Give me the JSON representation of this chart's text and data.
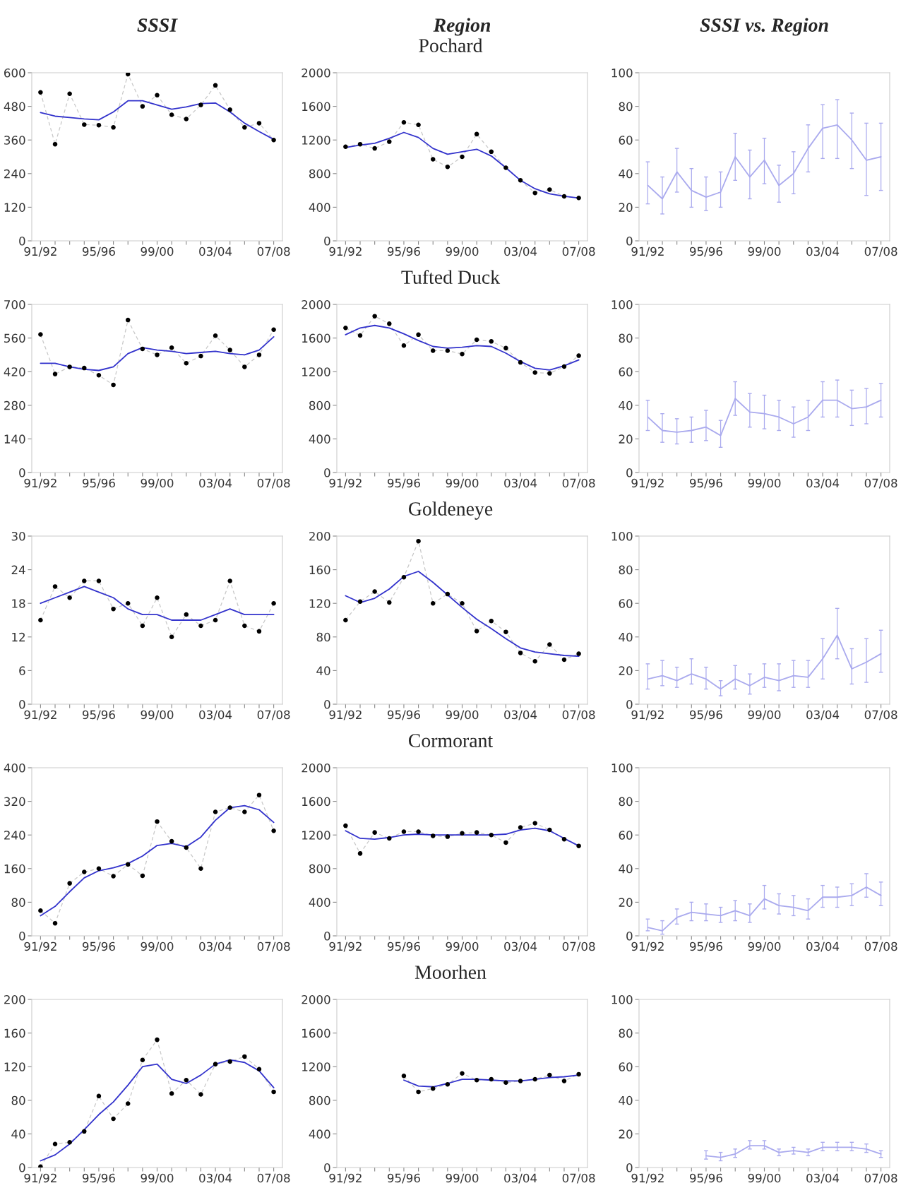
{
  "chart_data": [
    {
      "type": "line",
      "title": "SSSI",
      "categories": [
        "91/92",
        null,
        null,
        null,
        "95/96",
        null,
        null,
        null,
        "99/00",
        null,
        null,
        null,
        "03/04",
        null,
        null,
        null,
        "07/08"
      ],
      "ylim": [
        0,
        600
      ],
      "yticks": [
        0,
        120,
        240,
        360,
        480,
        600
      ],
      "grid": false,
      "series": [
        {
          "line_style": "dashed",
          "color": "#c8c8c8",
          "values": [
            530,
            345,
            525,
            415,
            413,
            405,
            595,
            480,
            520,
            450,
            435,
            485,
            555,
            468,
            405,
            420,
            360
          ]
        },
        {
          "type": "scatter",
          "marker": "circle",
          "color": "#000000",
          "values": [
            530,
            345,
            525,
            415,
            413,
            405,
            595,
            480,
            520,
            450,
            435,
            485,
            555,
            468,
            405,
            420,
            360
          ]
        },
        {
          "color": "#3333cc",
          "values": [
            458,
            445,
            440,
            435,
            432,
            460,
            500,
            500,
            485,
            470,
            478,
            490,
            492,
            460,
            420,
            390,
            362
          ]
        }
      ]
    },
    {
      "type": "line",
      "title": "Region",
      "subtitle": "Pochard",
      "categories": [
        "91/92",
        null,
        null,
        null,
        "95/96",
        null,
        null,
        null,
        "99/00",
        null,
        null,
        null,
        "03/04",
        null,
        null,
        null,
        "07/08"
      ],
      "ylim": [
        0,
        2000
      ],
      "yticks": [
        0,
        400,
        800,
        1200,
        1600,
        2000
      ],
      "grid": false,
      "series": [
        {
          "line_style": "dashed",
          "color": "#c8c8c8",
          "values": [
            1120,
            1150,
            1100,
            1180,
            1410,
            1380,
            970,
            880,
            1000,
            1270,
            1060,
            870,
            720,
            570,
            610,
            530,
            510
          ]
        },
        {
          "type": "scatter",
          "marker": "circle",
          "color": "#000000",
          "values": [
            1120,
            1150,
            1100,
            1180,
            1410,
            1380,
            970,
            880,
            1000,
            1270,
            1060,
            870,
            720,
            570,
            610,
            530,
            510
          ]
        },
        {
          "color": "#3333cc",
          "values": [
            1110,
            1140,
            1160,
            1220,
            1290,
            1230,
            1100,
            1030,
            1060,
            1090,
            1010,
            870,
            720,
            620,
            560,
            530,
            510
          ]
        }
      ]
    },
    {
      "type": "line",
      "title": "SSSI vs. Region",
      "categories": [
        "91/92",
        null,
        null,
        null,
        "95/96",
        null,
        null,
        null,
        "99/00",
        null,
        null,
        null,
        "03/04",
        null,
        null,
        null,
        "07/08"
      ],
      "ylim": [
        0,
        100
      ],
      "yticks": [
        0,
        20,
        40,
        60,
        80,
        100
      ],
      "grid": false,
      "series": [
        {
          "color": "#aaaaee",
          "values": [
            33,
            25,
            41,
            30,
            26,
            29,
            50,
            38,
            48,
            33,
            40,
            55,
            67,
            69,
            60,
            48,
            50
          ],
          "errors": [
            [
              22,
              47
            ],
            [
              16,
              38
            ],
            [
              29,
              55
            ],
            [
              20,
              43
            ],
            [
              18,
              38
            ],
            [
              20,
              41
            ],
            [
              36,
              64
            ],
            [
              25,
              54
            ],
            [
              34,
              61
            ],
            [
              23,
              45
            ],
            [
              28,
              53
            ],
            [
              41,
              69
            ],
            [
              49,
              81
            ],
            [
              49,
              84
            ],
            [
              43,
              76
            ],
            [
              27,
              70
            ],
            [
              30,
              70
            ]
          ]
        }
      ]
    },
    {
      "type": "line",
      "categories": [
        "91/92",
        null,
        null,
        null,
        "95/96",
        null,
        null,
        null,
        "99/00",
        null,
        null,
        null,
        "03/04",
        null,
        null,
        null,
        "07/08"
      ],
      "ylim": [
        0,
        700
      ],
      "yticks": [
        0,
        140,
        280,
        420,
        560,
        700
      ],
      "grid": false,
      "series": [
        {
          "line_style": "dashed",
          "color": "#c8c8c8",
          "values": [
            575,
            410,
            440,
            435,
            405,
            365,
            635,
            515,
            490,
            520,
            455,
            485,
            570,
            510,
            440,
            490,
            595
          ]
        },
        {
          "type": "scatter",
          "marker": "circle",
          "color": "#000000",
          "values": [
            575,
            410,
            440,
            435,
            405,
            365,
            635,
            515,
            490,
            520,
            455,
            485,
            570,
            510,
            440,
            490,
            595
          ]
        },
        {
          "color": "#3333cc",
          "values": [
            455,
            455,
            440,
            430,
            425,
            440,
            495,
            520,
            510,
            505,
            495,
            500,
            505,
            495,
            490,
            510,
            565
          ]
        }
      ]
    },
    {
      "type": "line",
      "subtitle": "Tufted Duck",
      "categories": [
        "91/92",
        null,
        null,
        null,
        "95/96",
        null,
        null,
        null,
        "99/00",
        null,
        null,
        null,
        "03/04",
        null,
        null,
        null,
        "07/08"
      ],
      "ylim": [
        0,
        2000
      ],
      "yticks": [
        0,
        400,
        800,
        1200,
        1600,
        2000
      ],
      "grid": false,
      "series": [
        {
          "line_style": "dashed",
          "color": "#c8c8c8",
          "values": [
            1720,
            1630,
            1860,
            1770,
            1510,
            1640,
            1450,
            1450,
            1410,
            1580,
            1560,
            1480,
            1310,
            1190,
            1180,
            1260,
            1390
          ]
        },
        {
          "type": "scatter",
          "marker": "circle",
          "color": "#000000",
          "values": [
            1720,
            1630,
            1860,
            1770,
            1510,
            1640,
            1450,
            1450,
            1410,
            1580,
            1560,
            1480,
            1310,
            1190,
            1180,
            1260,
            1390
          ]
        },
        {
          "color": "#3333cc",
          "values": [
            1640,
            1720,
            1750,
            1720,
            1650,
            1570,
            1500,
            1480,
            1490,
            1510,
            1500,
            1420,
            1320,
            1240,
            1220,
            1270,
            1340
          ]
        }
      ]
    },
    {
      "type": "line",
      "categories": [
        "91/92",
        null,
        null,
        null,
        "95/96",
        null,
        null,
        null,
        "99/00",
        null,
        null,
        null,
        "03/04",
        null,
        null,
        null,
        "07/08"
      ],
      "ylim": [
        0,
        100
      ],
      "yticks": [
        0,
        20,
        40,
        60,
        80,
        100
      ],
      "grid": false,
      "series": [
        {
          "color": "#aaaaee",
          "values": [
            33,
            25,
            24,
            25,
            27,
            22,
            44,
            36,
            35,
            33,
            29,
            33,
            43,
            43,
            38,
            39,
            43
          ],
          "errors": [
            [
              25,
              43
            ],
            [
              18,
              35
            ],
            [
              17,
              32
            ],
            [
              18,
              33
            ],
            [
              19,
              37
            ],
            [
              15,
              31
            ],
            [
              34,
              54
            ],
            [
              27,
              47
            ],
            [
              26,
              46
            ],
            [
              25,
              43
            ],
            [
              21,
              39
            ],
            [
              25,
              43
            ],
            [
              33,
              54
            ],
            [
              33,
              55
            ],
            [
              28,
              49
            ],
            [
              29,
              50
            ],
            [
              33,
              53
            ]
          ]
        }
      ]
    },
    {
      "type": "line",
      "categories": [
        "91/92",
        null,
        null,
        null,
        "95/96",
        null,
        null,
        null,
        "99/00",
        null,
        null,
        null,
        "03/04",
        null,
        null,
        null,
        "07/08"
      ],
      "ylim": [
        0,
        30
      ],
      "yticks": [
        0,
        6,
        12,
        18,
        24,
        30
      ],
      "grid": false,
      "series": [
        {
          "line_style": "dashed",
          "color": "#c8c8c8",
          "values": [
            15,
            21,
            19,
            22,
            22,
            17,
            18,
            14,
            19,
            12,
            16,
            14,
            15,
            22,
            14,
            13,
            18
          ]
        },
        {
          "type": "scatter",
          "marker": "circle",
          "color": "#000000",
          "values": [
            15,
            21,
            19,
            22,
            22,
            17,
            18,
            14,
            19,
            12,
            16,
            14,
            15,
            22,
            14,
            13,
            18
          ]
        },
        {
          "color": "#3333cc",
          "values": [
            18,
            19,
            20,
            21,
            20,
            19,
            17,
            16,
            16,
            15,
            15,
            15,
            16,
            17,
            16,
            16,
            16
          ]
        }
      ]
    },
    {
      "type": "line",
      "subtitle": "Goldeneye",
      "categories": [
        "91/92",
        null,
        null,
        null,
        "95/96",
        null,
        null,
        null,
        "99/00",
        null,
        null,
        null,
        "03/04",
        null,
        null,
        null,
        "07/08"
      ],
      "ylim": [
        0,
        200
      ],
      "yticks": [
        0,
        40,
        80,
        120,
        160,
        200
      ],
      "grid": false,
      "series": [
        {
          "line_style": "dashed",
          "color": "#c8c8c8",
          "values": [
            100,
            122,
            134,
            121,
            151,
            194,
            120,
            131,
            120,
            87,
            99,
            86,
            61,
            51,
            71,
            53,
            60
          ]
        },
        {
          "type": "scatter",
          "marker": "circle",
          "color": "#000000",
          "values": [
            100,
            122,
            134,
            121,
            151,
            194,
            120,
            131,
            120,
            87,
            99,
            86,
            61,
            51,
            71,
            53,
            60
          ]
        },
        {
          "color": "#3333cc",
          "values": [
            129,
            121,
            126,
            137,
            152,
            158,
            145,
            130,
            115,
            101,
            90,
            78,
            67,
            62,
            60,
            58,
            57
          ]
        }
      ]
    },
    {
      "type": "line",
      "categories": [
        "91/92",
        null,
        null,
        null,
        "95/96",
        null,
        null,
        null,
        "99/00",
        null,
        null,
        null,
        "03/04",
        null,
        null,
        null,
        "07/08"
      ],
      "ylim": [
        0,
        100
      ],
      "yticks": [
        0,
        20,
        40,
        60,
        80,
        100
      ],
      "grid": false,
      "series": [
        {
          "color": "#aaaaee",
          "values": [
            15,
            17,
            14,
            18,
            15,
            9,
            15,
            11,
            16,
            14,
            17,
            16,
            27,
            41,
            21,
            25,
            30
          ],
          "errors": [
            [
              9,
              24
            ],
            [
              11,
              26
            ],
            [
              10,
              22
            ],
            [
              12,
              27
            ],
            [
              9,
              22
            ],
            [
              5,
              14
            ],
            [
              9,
              23
            ],
            [
              6,
              18
            ],
            [
              10,
              24
            ],
            [
              8,
              24
            ],
            [
              10,
              26
            ],
            [
              10,
              26
            ],
            [
              15,
              39
            ],
            [
              27,
              57
            ],
            [
              12,
              33
            ],
            [
              13,
              39
            ],
            [
              19,
              44
            ]
          ]
        }
      ]
    },
    {
      "type": "line",
      "categories": [
        "91/92",
        null,
        null,
        null,
        "95/96",
        null,
        null,
        null,
        "99/00",
        null,
        null,
        null,
        "03/04",
        null,
        null,
        null,
        "07/08"
      ],
      "ylim": [
        0,
        400
      ],
      "yticks": [
        0,
        80,
        160,
        240,
        320,
        400
      ],
      "grid": false,
      "series": [
        {
          "line_style": "dashed",
          "color": "#c8c8c8",
          "values": [
            60,
            30,
            125,
            152,
            160,
            142,
            170,
            143,
            272,
            225,
            210,
            160,
            295,
            305,
            295,
            335,
            250
          ]
        },
        {
          "type": "scatter",
          "marker": "circle",
          "color": "#000000",
          "values": [
            60,
            30,
            125,
            152,
            160,
            142,
            170,
            143,
            272,
            225,
            210,
            160,
            295,
            305,
            295,
            335,
            250
          ]
        },
        {
          "color": "#3333cc",
          "values": [
            48,
            70,
            105,
            138,
            155,
            162,
            172,
            190,
            215,
            220,
            212,
            235,
            275,
            305,
            310,
            300,
            270
          ]
        }
      ]
    },
    {
      "type": "line",
      "subtitle": "Cormorant",
      "categories": [
        "91/92",
        null,
        null,
        null,
        "95/96",
        null,
        null,
        null,
        "99/00",
        null,
        null,
        null,
        "03/04",
        null,
        null,
        null,
        "07/08"
      ],
      "ylim": [
        0,
        2000
      ],
      "yticks": [
        0,
        400,
        800,
        1200,
        1600,
        2000
      ],
      "grid": false,
      "series": [
        {
          "line_style": "dashed",
          "color": "#c8c8c8",
          "values": [
            1310,
            980,
            1230,
            1160,
            1240,
            1240,
            1190,
            1180,
            1220,
            1230,
            1200,
            1110,
            1290,
            1340,
            1260,
            1150,
            1070
          ]
        },
        {
          "type": "scatter",
          "marker": "circle",
          "color": "#000000",
          "values": [
            1310,
            980,
            1230,
            1160,
            1240,
            1240,
            1190,
            1180,
            1220,
            1230,
            1200,
            1110,
            1290,
            1340,
            1260,
            1150,
            1070
          ]
        },
        {
          "color": "#3333cc",
          "values": [
            1250,
            1160,
            1150,
            1170,
            1200,
            1210,
            1200,
            1200,
            1200,
            1200,
            1200,
            1210,
            1260,
            1280,
            1250,
            1160,
            1070
          ]
        }
      ]
    },
    {
      "type": "line",
      "categories": [
        "91/92",
        null,
        null,
        null,
        "95/96",
        null,
        null,
        null,
        "99/00",
        null,
        null,
        null,
        "03/04",
        null,
        null,
        null,
        "07/08"
      ],
      "ylim": [
        0,
        100
      ],
      "yticks": [
        0,
        20,
        40,
        60,
        80,
        100
      ],
      "grid": false,
      "series": [
        {
          "color": "#aaaaee",
          "values": [
            5,
            3,
            11,
            14,
            13,
            12,
            15,
            12,
            22,
            18,
            17,
            15,
            23,
            23,
            24,
            29,
            24
          ],
          "errors": [
            [
              3,
              10
            ],
            [
              1,
              9
            ],
            [
              7,
              16
            ],
            [
              9,
              20
            ],
            [
              9,
              19
            ],
            [
              8,
              17
            ],
            [
              9,
              21
            ],
            [
              8,
              19
            ],
            [
              16,
              30
            ],
            [
              13,
              25
            ],
            [
              12,
              24
            ],
            [
              10,
              22
            ],
            [
              17,
              30
            ],
            [
              17,
              29
            ],
            [
              18,
              31
            ],
            [
              23,
              37
            ],
            [
              18,
              32
            ]
          ]
        }
      ]
    },
    {
      "type": "line",
      "categories": [
        "91/92",
        null,
        null,
        null,
        "95/96",
        null,
        null,
        null,
        "99/00",
        null,
        null,
        null,
        "03/04",
        null,
        null,
        null,
        "07/08"
      ],
      "ylim": [
        0,
        200
      ],
      "yticks": [
        0,
        40,
        80,
        120,
        160,
        200
      ],
      "grid": false,
      "series": [
        {
          "line_style": "dashed",
          "color": "#c8c8c8",
          "values": [
            1,
            28,
            30,
            43,
            85,
            58,
            76,
            128,
            152,
            88,
            104,
            87,
            123,
            126,
            132,
            117,
            90
          ]
        },
        {
          "type": "scatter",
          "marker": "circle",
          "color": "#000000",
          "values": [
            1,
            28,
            30,
            43,
            85,
            58,
            76,
            128,
            152,
            88,
            104,
            87,
            123,
            126,
            132,
            117,
            90
          ]
        },
        {
          "color": "#3333cc",
          "values": [
            8,
            15,
            28,
            45,
            63,
            78,
            98,
            120,
            123,
            105,
            100,
            110,
            123,
            128,
            125,
            115,
            95
          ]
        }
      ]
    },
    {
      "type": "line",
      "subtitle": "Moorhen",
      "categories": [
        "91/92",
        null,
        null,
        null,
        "95/96",
        null,
        null,
        null,
        "99/00",
        null,
        null,
        null,
        "03/04",
        null,
        null,
        null,
        "07/08"
      ],
      "ylim": [
        0,
        2000
      ],
      "yticks": [
        0,
        400,
        800,
        1200,
        1600,
        2000
      ],
      "grid": false,
      "series": [
        {
          "line_style": "dashed",
          "color": "#c8c8c8",
          "values": [
            null,
            null,
            null,
            null,
            1090,
            900,
            940,
            990,
            1120,
            1040,
            1050,
            1010,
            1030,
            1050,
            1100,
            1030,
            1110
          ]
        },
        {
          "type": "scatter",
          "marker": "circle",
          "color": "#000000",
          "values": [
            null,
            null,
            null,
            null,
            1090,
            900,
            940,
            990,
            1120,
            1040,
            1050,
            1010,
            1030,
            1050,
            1100,
            1030,
            1110
          ]
        },
        {
          "color": "#3333cc",
          "values": [
            null,
            null,
            null,
            null,
            1040,
            970,
            960,
            1000,
            1050,
            1050,
            1040,
            1030,
            1030,
            1050,
            1070,
            1080,
            1100
          ]
        }
      ]
    },
    {
      "type": "line",
      "categories": [
        "91/92",
        null,
        null,
        null,
        "95/96",
        null,
        null,
        null,
        "99/00",
        null,
        null,
        null,
        "03/04",
        null,
        null,
        null,
        "07/08"
      ],
      "ylim": [
        0,
        100
      ],
      "yticks": [
        0,
        20,
        40,
        60,
        80,
        100
      ],
      "grid": false,
      "series": [
        {
          "color": "#aaaaee",
          "values": [
            null,
            null,
            null,
            null,
            7,
            6,
            8,
            13,
            13,
            9,
            10,
            9,
            12,
            12,
            12,
            11,
            8
          ],
          "errors": [
            null,
            null,
            null,
            null,
            [
              5,
              10
            ],
            [
              4,
              9
            ],
            [
              6,
              11
            ],
            [
              11,
              16
            ],
            [
              11,
              16
            ],
            [
              7,
              11
            ],
            [
              8,
              12
            ],
            [
              7,
              11
            ],
            [
              10,
              15
            ],
            [
              10,
              15
            ],
            [
              10,
              15
            ],
            [
              9,
              14
            ],
            [
              6,
              10
            ]
          ]
        }
      ]
    }
  ]
}
